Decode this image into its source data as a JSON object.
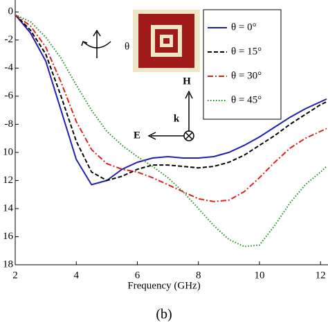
{
  "chart_data": {
    "type": "line",
    "x_label": "Frequency (GHz)",
    "caption": "(b)",
    "annotations": {
      "rotation": "θ",
      "h_field": "H",
      "k_vector": "k",
      "e_field": "E"
    },
    "x": [
      2,
      2.5,
      3,
      3.5,
      4,
      4.5,
      5,
      5.5,
      6,
      6.5,
      7,
      7.5,
      8,
      8.5,
      9,
      9.5,
      10,
      10.5,
      11,
      11.5,
      12,
      12.2
    ],
    "series": [
      {
        "name": "θ = 0°",
        "color": "#1f1fb4",
        "dash": "solid",
        "values": [
          -0.2,
          -1.5,
          -3.5,
          -7,
          -10.5,
          -12.3,
          -12,
          -11.2,
          -10.7,
          -10.4,
          -10.3,
          -10.4,
          -10.4,
          -10.3,
          -10,
          -9.5,
          -8.9,
          -8.2,
          -7.5,
          -6.9,
          -6.4,
          -6.2
        ]
      },
      {
        "name": "θ = 15°",
        "color": "#000000",
        "dash": "dashed",
        "values": [
          -0.2,
          -1.3,
          -3,
          -6,
          -9.2,
          -11.4,
          -12,
          -11.7,
          -11.2,
          -10.9,
          -10.9,
          -11,
          -11.1,
          -11,
          -10.7,
          -10.2,
          -9.5,
          -8.8,
          -8,
          -7.3,
          -6.6,
          -6.4
        ]
      },
      {
        "name": "θ = 30°",
        "color": "#e0201c",
        "dash": "dashdot",
        "values": [
          -0.2,
          -1,
          -2.5,
          -5,
          -7.8,
          -9.8,
          -10.8,
          -11.2,
          -11.4,
          -11.8,
          -12.3,
          -12.8,
          -13.3,
          -13.5,
          -13.4,
          -12.8,
          -11.8,
          -10.7,
          -9.7,
          -9,
          -8.5,
          -8.3
        ]
      },
      {
        "name": "θ = 45°",
        "color": "#1e8c1e",
        "dash": "dotted",
        "values": [
          -0.2,
          -0.7,
          -1.8,
          -3.3,
          -5.2,
          -7,
          -8.5,
          -9.5,
          -10.3,
          -11,
          -11.8,
          -12.8,
          -14,
          -15.2,
          -16.2,
          -16.7,
          -16.6,
          -15.2,
          -13.6,
          -12.3,
          -11.4,
          -11
        ]
      }
    ],
    "xlim": [
      2,
      12.2
    ],
    "xticks": [
      2,
      4,
      6,
      8,
      10,
      12
    ],
    "ylim": [
      -18,
      0.8
    ],
    "yticks": [
      0,
      -2,
      -4,
      -6,
      -8,
      {
        "value": -10,
        "label": "10"
      },
      {
        "value": -12,
        "label": "12"
      },
      {
        "value": -14,
        "label": "14"
      },
      {
        "value": -16,
        "label": "16"
      },
      {
        "value": -18,
        "label": "18"
      }
    ],
    "legend": "upper right"
  }
}
